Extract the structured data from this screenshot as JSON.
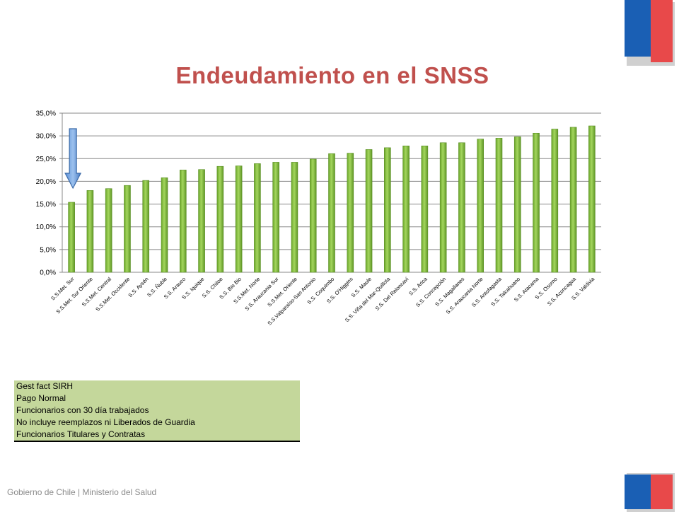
{
  "title": "Endeudamiento en el SNSS",
  "footer": "Gobierno de Chile | Ministerio del Salud",
  "notes": [
    "Gest fact SIRH",
    "Pago Normal",
    "Funcionarios con 30 día trabajados",
    "No incluye reemplazos ni Liberados de Guardia",
    "Funcionarios Titulares y Contratas"
  ],
  "colors": {
    "title": "#c0504d",
    "bar": "#8dc63f",
    "arrow": "#4f81bd",
    "flag_blue": "#1a5fb4",
    "flag_red": "#e8494a",
    "notes_bg": "#c4d79b"
  },
  "chart_data": {
    "type": "bar",
    "categories": [
      "S.S.Met. Sur",
      "S.S.Met. Sur Oriente",
      "S.S.Met. Central",
      "S.S.Met. Occidente",
      "S.S. Aysén",
      "S.S. Ñuble",
      "S.S. Arauco",
      "S.S. Iquique",
      "S.S. Chiloe",
      "S.S. Bio Bio",
      "S.S.Met. Norte",
      "S.S. Araucania Sur",
      "S.S.Met. Oriente",
      "S.S.Valparaíso-San Antonio",
      "S.S. Coquimbo",
      "S.S. O'Higgins",
      "S.S. Maule",
      "S.S. Viña del Mar-Quillota",
      "S.S. Del Reloncaví",
      "S.S. Arica",
      "S.S. Concepción",
      "S.S. Magallanes",
      "S.S. Araucania Norte",
      "S.S. Antofagasta",
      "S.S. Talcahuano",
      "S.S. Atacama",
      "S.S. Osorno",
      "S.S. Aconcagua",
      "S.S. Valdivia"
    ],
    "values": [
      15.4,
      18.0,
      18.4,
      19.1,
      20.2,
      20.8,
      22.5,
      22.6,
      23.3,
      23.4,
      23.9,
      24.2,
      24.2,
      24.9,
      26.1,
      26.2,
      27.0,
      27.4,
      27.8,
      27.8,
      28.5,
      28.5,
      29.3,
      29.5,
      29.8,
      30.6,
      31.5,
      31.9,
      32.2
    ],
    "ylim": [
      0,
      35
    ],
    "yticks": [
      "0,0%",
      "5,0%",
      "10,0%",
      "15,0%",
      "20,0%",
      "25,0%",
      "30,0%",
      "35,0%"
    ],
    "grid": true,
    "highlight_index": 0
  }
}
